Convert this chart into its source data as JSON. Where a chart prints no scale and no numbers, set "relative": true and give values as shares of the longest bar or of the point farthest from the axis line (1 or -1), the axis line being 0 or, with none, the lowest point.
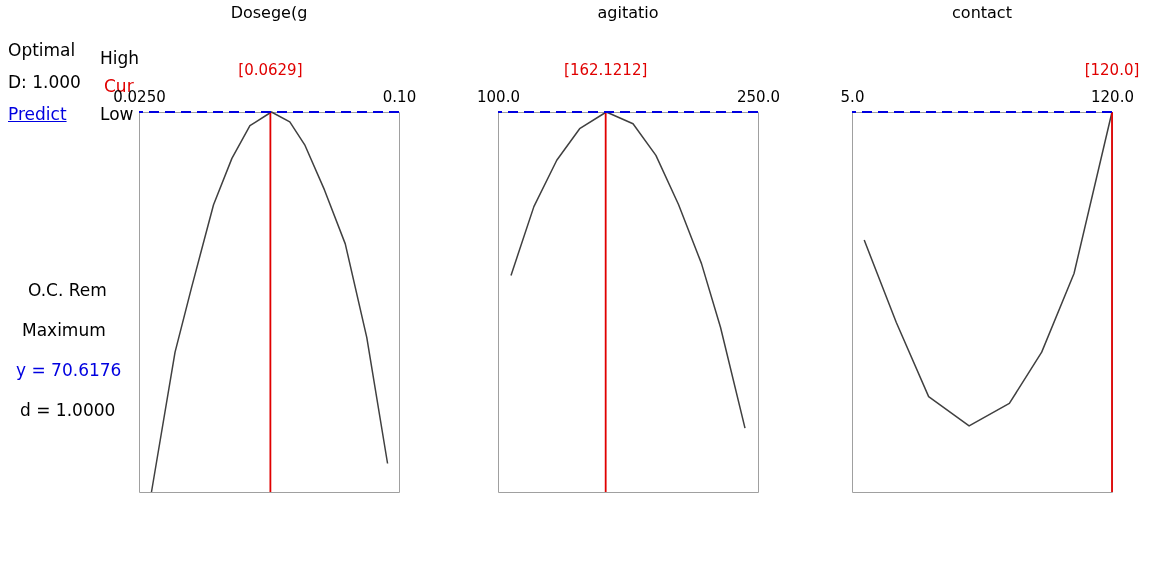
{
  "chart_data": [
    {
      "type": "other",
      "annotations": [
        "Optimal",
        "D: 1.000",
        "Predict",
        "High",
        "Cur",
        "Low",
        "O.C. Rem",
        "Maximum",
        "y = 70.6176",
        "d = 1.0000"
      ]
    },
    {
      "type": "line",
      "title": "Dosege(g",
      "relative": true,
      "xlim": [
        0.025,
        0.1
      ],
      "xticks": [
        {
          "value": 0.025,
          "label": "0.0250"
        },
        {
          "value": 0.1,
          "label": "0.10"
        }
      ],
      "grid": false,
      "series": [
        {
          "color": "#404040",
          "x": [
            0.0286,
            0.0354,
            0.0401,
            0.0465,
            0.0518,
            0.057,
            0.0632,
            0.0685,
            0.0729,
            0.0785,
            0.0845,
            0.0907,
            0.0967
          ],
          "values": [
            0,
            0.368,
            0.536,
            0.756,
            0.878,
            0.964,
            1,
            0.974,
            0.912,
            0.795,
            0.653,
            0.407,
            0.075
          ]
        }
      ],
      "ref_lines": [
        {
          "axis": "x",
          "value": 0.0629,
          "label": "[0.0629]",
          "color": "#e00000"
        },
        {
          "axis": "y",
          "value": 1,
          "color": "#0000e0",
          "line_style": "dashed"
        }
      ]
    },
    {
      "type": "line",
      "title": "agitatio",
      "relative": true,
      "xlim": [
        100,
        250
      ],
      "xticks": [
        {
          "value": 100,
          "label": "100.0"
        },
        {
          "value": 250,
          "label": "250.0"
        }
      ],
      "grid": false,
      "series": [
        {
          "color": "#404040",
          "x": [
            107.5,
            120.7,
            133.9,
            147.1,
            162.5,
            177.9,
            191.1,
            204.2,
            217.4,
            228.4,
            242.5
          ],
          "values": [
            0.57,
            0.751,
            0.873,
            0.956,
            1,
            0.969,
            0.886,
            0.756,
            0.601,
            0.433,
            0.168
          ]
        }
      ],
      "ref_lines": [
        {
          "axis": "x",
          "value": 162.1212,
          "label": "[162.1212]",
          "color": "#e00000"
        },
        {
          "axis": "y",
          "value": 1,
          "color": "#0000e0",
          "line_style": "dashed"
        }
      ]
    },
    {
      "type": "line",
      "title": "contact",
      "relative": true,
      "xlim": [
        5,
        120
      ],
      "xticks": [
        {
          "value": 5,
          "label": "5.0"
        },
        {
          "value": 120,
          "label": "120.0"
        }
      ],
      "grid": false,
      "series": [
        {
          "color": "#404040",
          "x": [
            10.4,
            24.6,
            38.9,
            56.8,
            74.6,
            88.9,
            103.2,
            120
          ],
          "values": [
            0.663,
            0.446,
            0.251,
            0.174,
            0.233,
            0.368,
            0.575,
            1
          ]
        }
      ],
      "ref_lines": [
        {
          "axis": "x",
          "value": 120,
          "label": "[120.0]",
          "color": "#e00000"
        },
        {
          "axis": "y",
          "value": 1,
          "color": "#0000e0",
          "line_style": "dashed"
        }
      ]
    }
  ]
}
